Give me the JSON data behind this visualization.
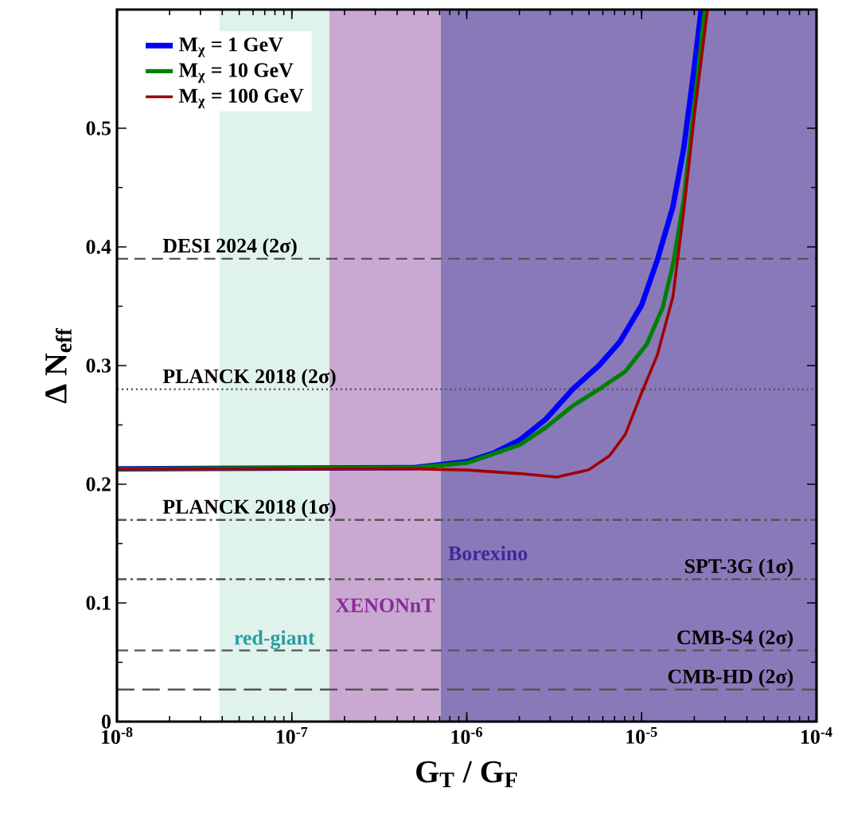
{
  "chart_data": {
    "type": "line",
    "xlabel": "G$_{T}$ / G$_{F}$",
    "ylabel": "Δ N$_{eff}$",
    "log": "x",
    "xlim": [
      1e-08,
      0.0001
    ],
    "ylim": [
      0,
      0.6
    ],
    "xticks": [
      {
        "value": 1e-08,
        "label": "10$^{-8}$"
      },
      {
        "value": 1e-07,
        "label": "10$^{-7}$"
      },
      {
        "value": 1e-06,
        "label": "10$^{-6}$"
      },
      {
        "value": 1e-05,
        "label": "10$^{-5}$"
      },
      {
        "value": 0.0001,
        "label": "10$^{-4}$"
      }
    ],
    "yticks": [
      0,
      0.1,
      0.2,
      0.3,
      0.4,
      0.5
    ],
    "legend": "top left",
    "grid": false,
    "marker": "none",
    "line_style": "solid",
    "series": [
      {
        "name": "M$_{χ}$ = 1 GeV",
        "color": "#0000ff",
        "x": [
          1e-08,
          5e-07,
          1e-06,
          1.41e-06,
          2e-06,
          2.84e-06,
          4.03e-06,
          5.7e-06,
          7.5e-06,
          1e-05,
          1.23e-05,
          1.51e-05,
          1.74e-05,
          2e-05,
          2.19e-05
        ],
        "values": [
          0.213,
          0.214,
          0.219,
          0.226,
          0.237,
          0.255,
          0.28,
          0.3,
          0.32,
          0.351,
          0.389,
          0.434,
          0.483,
          0.551,
          0.6
        ]
      },
      {
        "name": "M$_{χ}$ = 10 GeV",
        "color": "#008000",
        "x": [
          1e-08,
          5e-07,
          1e-06,
          2e-06,
          2.84e-06,
          4.03e-06,
          5.7e-06,
          8.07e-06,
          1.07e-05,
          1.32e-05,
          1.51e-05,
          1.74e-05,
          2e-05,
          2.3e-05
        ],
        "values": [
          0.213,
          0.214,
          0.218,
          0.233,
          0.248,
          0.266,
          0.28,
          0.295,
          0.318,
          0.349,
          0.385,
          0.439,
          0.519,
          0.6
        ]
      },
      {
        "name": "M$_{χ}$ = 100 GeV",
        "color": "#a00000",
        "x": [
          1e-08,
          5e-07,
          1e-06,
          2e-06,
          3.27e-06,
          4.96e-06,
          6.55e-06,
          8.07e-06,
          1e-05,
          1.23e-05,
          1.51e-05,
          1.74e-05,
          2e-05,
          2.38e-05
        ],
        "values": [
          0.213,
          0.213,
          0.212,
          0.209,
          0.206,
          0.212,
          0.224,
          0.242,
          0.277,
          0.309,
          0.358,
          0.43,
          0.51,
          0.6
        ]
      }
    ],
    "bands": [
      {
        "axis": "x",
        "from": 3.85e-08,
        "to": 1.64e-07,
        "label": "red-giant",
        "color": "#dff2ec"
      },
      {
        "axis": "x",
        "from": 1.64e-07,
        "to": 7.1e-07,
        "label": "XENONnT",
        "color": "#c9a9d2"
      },
      {
        "axis": "x",
        "from": 7.1e-07,
        "to": 0.0001,
        "label": "Borexino",
        "color": "#8a79b9"
      }
    ],
    "ref_lines": [
      {
        "axis": "y",
        "value": 0.39,
        "label": "DESI 2024 (2σ)",
        "color": "#555555",
        "line_style": "dashed"
      },
      {
        "axis": "y",
        "value": 0.28,
        "label": "PLANCK 2018 (2σ)",
        "color": "#555555",
        "line_style": "dotted"
      },
      {
        "axis": "y",
        "value": 0.17,
        "label": "PLANCK 2018 (1σ)",
        "color": "#555555",
        "line_style": "dashdot"
      },
      {
        "axis": "y",
        "value": 0.12,
        "label": "SPT-3G (1σ)",
        "color": "#555555",
        "line_style": "dashdot"
      },
      {
        "axis": "y",
        "value": 0.06,
        "label": "CMB-S4 (2σ)",
        "color": "#555555",
        "line_style": "dashed"
      },
      {
        "axis": "y",
        "value": 0.027,
        "label": "CMB-HD (2σ)",
        "color": "#555555",
        "line_style": "long dashed"
      }
    ]
  }
}
